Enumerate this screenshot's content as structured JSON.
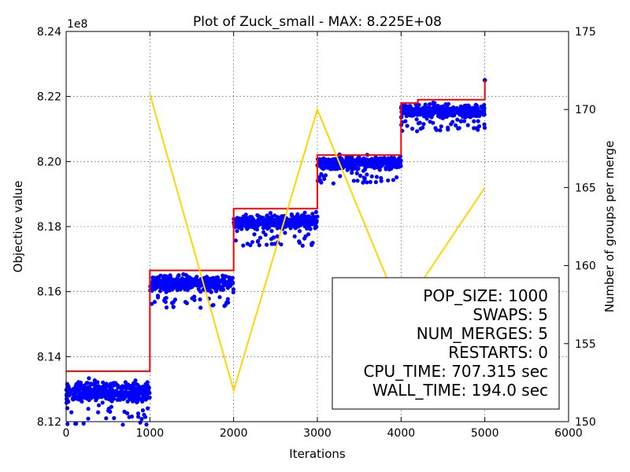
{
  "chart_data": {
    "type": "scatter",
    "title": "Plot of Zuck_small - MAX: 8.225E+08",
    "xlabel": "Iterations",
    "ylabel": "Objective value",
    "y2label": "Number of groups per merge",
    "y_offset_label": "1e8",
    "xlim": [
      0,
      6000
    ],
    "ylim": [
      8.12,
      8.24
    ],
    "y2lim": [
      150,
      175
    ],
    "x_ticks": [
      0,
      1000,
      2000,
      3000,
      4000,
      5000,
      6000
    ],
    "x_tick_labels": [
      "0",
      "1000",
      "2000",
      "3000",
      "4000",
      "5000",
      "6000"
    ],
    "y_ticks": [
      8.12,
      8.14,
      8.16,
      8.18,
      8.2,
      8.22,
      8.24
    ],
    "y_tick_labels": [
      "8.12",
      "8.14",
      "8.16",
      "8.18",
      "8.20",
      "8.22",
      "8.24"
    ],
    "y2_ticks": [
      150,
      155,
      160,
      165,
      170,
      175
    ],
    "y2_tick_labels": [
      "150",
      "155",
      "160",
      "165",
      "170",
      "175"
    ],
    "grid": true,
    "population_scatter": {
      "color": "#0000ff",
      "stages": [
        {
          "x_range": [
            0,
            1000
          ],
          "center": 8.129,
          "spread": 0.004
        },
        {
          "x_range": [
            1000,
            2000
          ],
          "center": 8.1625,
          "spread": 0.003
        },
        {
          "x_range": [
            2000,
            3000
          ],
          "center": 8.1815,
          "spread": 0.003
        },
        {
          "x_range": [
            3000,
            4000
          ],
          "center": 8.1995,
          "spread": 0.0025
        },
        {
          "x_range": [
            4000,
            5000
          ],
          "center": 8.2155,
          "spread": 0.0025
        }
      ],
      "max_point": {
        "x": 5000,
        "y": 8.225
      }
    },
    "best_series": {
      "color": "#ff0000",
      "x": [
        0,
        1000,
        1000,
        2000,
        2000,
        3000,
        3000,
        4000,
        4000,
        4200,
        4200,
        5000,
        5000
      ],
      "y": [
        8.1355,
        8.1355,
        8.1665,
        8.1665,
        8.1855,
        8.1855,
        8.202,
        8.202,
        8.218,
        8.218,
        8.219,
        8.219,
        8.225
      ]
    },
    "groups_series": {
      "color": "#ffd700",
      "x": [
        1000,
        2000,
        3000,
        4000,
        5000
      ],
      "y": [
        171,
        152,
        170,
        157,
        165
      ]
    },
    "info_box": {
      "lines": [
        "POP_SIZE: 1000",
        "SWAPS: 5",
        "NUM_MERGES: 5",
        "RESTARTS: 0",
        "CPU_TIME: 707.315 sec",
        "WALL_TIME: 194.0 sec"
      ]
    }
  }
}
